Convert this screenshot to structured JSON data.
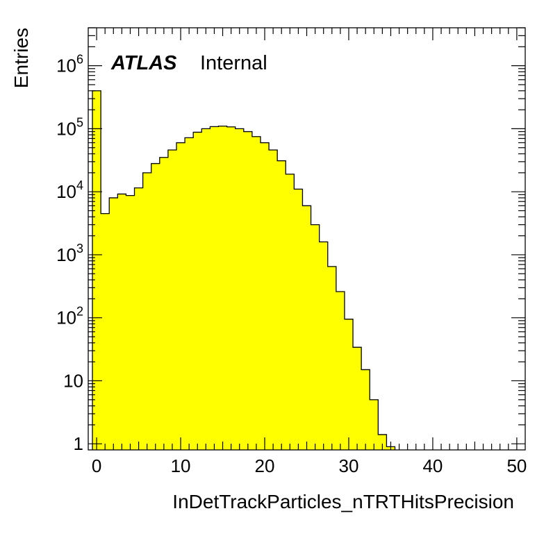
{
  "chart_data": {
    "type": "bar",
    "style": "histogram",
    "fill_color": "#ffff00",
    "line_color": "#000000",
    "label": {
      "experiment": "ATLAS",
      "status": "Internal"
    },
    "xlabel": "InDetTrackParticles_nTRTHitsPrecision",
    "ylabel": "Entries",
    "xlim": [
      -1,
      51
    ],
    "ylim": [
      0.8,
      4000000
    ],
    "log_y": true,
    "grid": false,
    "x_ticks": [
      "0",
      "10",
      "20",
      "30",
      "40",
      "50"
    ],
    "y_ticks": [
      {
        "base": "1",
        "exp": ""
      },
      {
        "base": "10",
        "exp": ""
      },
      {
        "base": "10",
        "exp": "2"
      },
      {
        "base": "10",
        "exp": "3"
      },
      {
        "base": "10",
        "exp": "4"
      },
      {
        "base": "10",
        "exp": "5"
      },
      {
        "base": "10",
        "exp": "6"
      }
    ],
    "bin_edges_start": -0.5,
    "bin_width": 1,
    "values": [
      400000,
      4500,
      8000,
      9200,
      8700,
      11500,
      20000,
      28000,
      35000,
      46000,
      60000,
      72000,
      88000,
      100000,
      108000,
      110000,
      107000,
      100000,
      90000,
      75000,
      60000,
      46000,
      31000,
      19000,
      11000,
      6000,
      3000,
      1600,
      650,
      260,
      95,
      34,
      15,
      5,
      1.4,
      0.9
    ]
  }
}
